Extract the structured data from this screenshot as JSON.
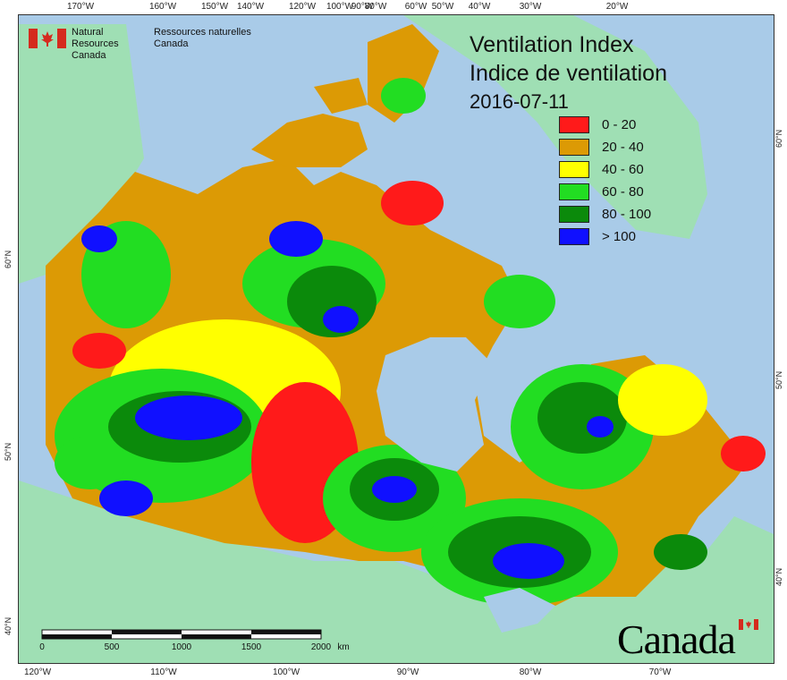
{
  "map": {
    "title_en": "Ventilation Index",
    "title_fr": "Indice de ventilation",
    "date": "2016-07-11",
    "agency_en_line1": "Natural Resources",
    "agency_en_line2": "Canada",
    "agency_fr_line1": "Ressources naturelles",
    "agency_fr_line2": "Canada",
    "wordmark": "Canada"
  },
  "legend": [
    {
      "label": "0 - 20",
      "color": "#ff1a1a"
    },
    {
      "label": "20 - 40",
      "color": "#dc9a05"
    },
    {
      "label": "40 - 60",
      "color": "#ffff00"
    },
    {
      "label": "60 - 80",
      "color": "#22dd22"
    },
    {
      "label": "80 - 100",
      "color": "#0b8a0b"
    },
    {
      "label": "> 100",
      "color": "#1010ff"
    }
  ],
  "top_longitude_ticks": [
    "170°W",
    "160°W",
    "150°W",
    "140°W",
    "120°W",
    "100°W",
    "90°W",
    "80°W",
    "60°W",
    "50°W",
    "40°W",
    "30°W",
    "20°W"
  ],
  "bottom_longitude_ticks": [
    "120°W",
    "110°W",
    "100°W",
    "90°W",
    "80°W",
    "70°W"
  ],
  "left_latitude_ticks": [
    "60°N",
    "50°N",
    "40°N"
  ],
  "right_latitude_ticks": [
    "60°N",
    "50°N",
    "40°N"
  ],
  "scale_bar": {
    "labels": [
      "0",
      "500",
      "1000",
      "1500",
      "2000"
    ],
    "unit": "km"
  },
  "colors": {
    "ocean": "#a9cbe8",
    "land_outside": "#9fdfb4",
    "lake": "#a9cbe8"
  }
}
